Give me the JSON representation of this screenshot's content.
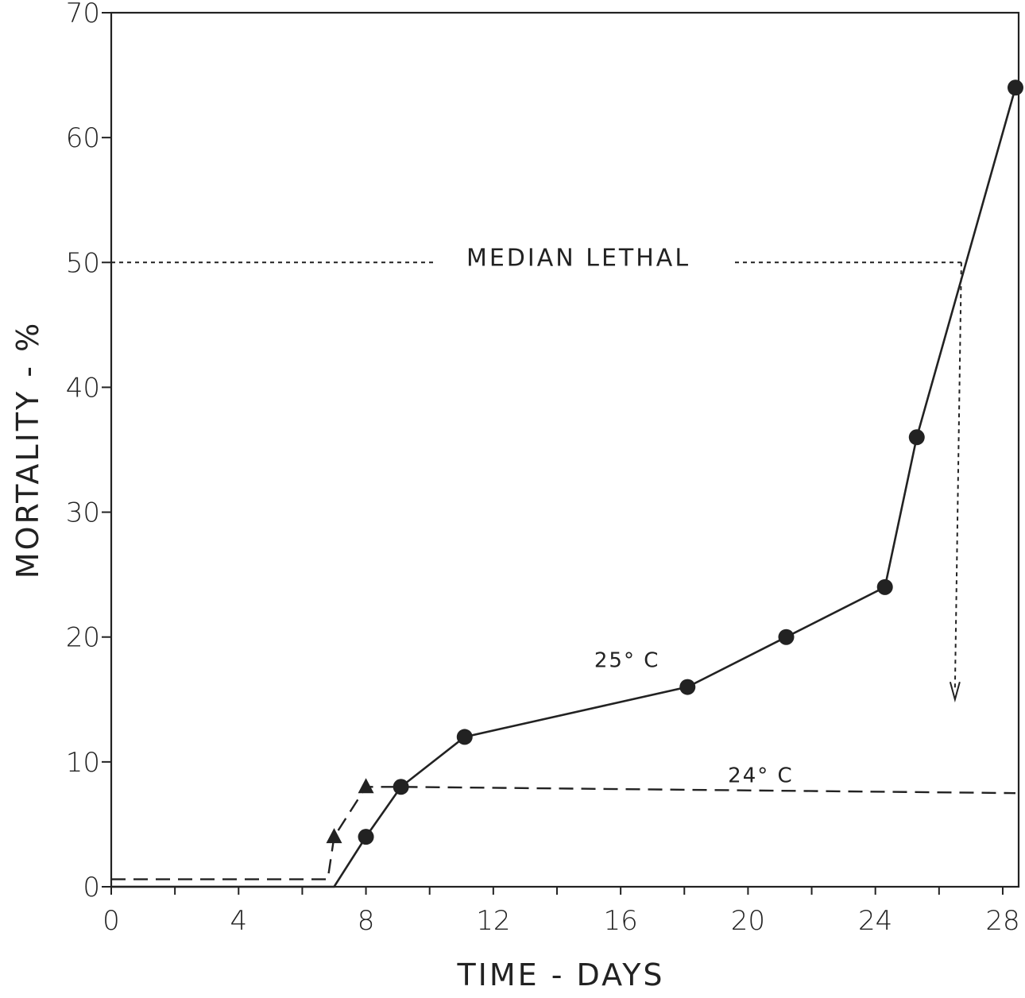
{
  "chart_data": {
    "type": "line",
    "xlabel": "TIME - DAYS",
    "ylabel": "MORTALITY - %",
    "xlim": [
      0,
      28.5
    ],
    "ylim": [
      0,
      70
    ],
    "xticks": [
      0,
      4,
      8,
      12,
      16,
      20,
      24,
      28
    ],
    "yticks": [
      0,
      10,
      20,
      30,
      40,
      50,
      60,
      70
    ],
    "x_tick_labels": [
      "0",
      "4",
      "8",
      "12",
      "16",
      "20",
      "24",
      "28"
    ],
    "y_tick_labels": [
      "0",
      "10",
      "20",
      "30",
      "40",
      "50",
      "60",
      "70"
    ],
    "grid": false,
    "series": [
      {
        "name": "25° C",
        "marker": "circle",
        "line_style": "solid",
        "x": [
          0,
          7,
          8,
          9.1,
          11.1,
          18.1,
          21.2,
          24.3,
          25.3,
          28.4
        ],
        "y": [
          0,
          0,
          4,
          8,
          12,
          16,
          20,
          24,
          36,
          64
        ]
      },
      {
        "name": "24° C",
        "marker": "triangle",
        "line_style": "dashed",
        "x": [
          0,
          6.8,
          7,
          8,
          9.1,
          28.4
        ],
        "y": [
          0.6,
          0.6,
          4,
          8,
          8,
          7.5
        ]
      }
    ],
    "annotations": [
      {
        "text": "MEDIAN LETHAL",
        "y": 50
      },
      {
        "arrow_from": [
          26.7,
          50
        ],
        "arrow_to": [
          26.7,
          15
        ]
      }
    ]
  }
}
